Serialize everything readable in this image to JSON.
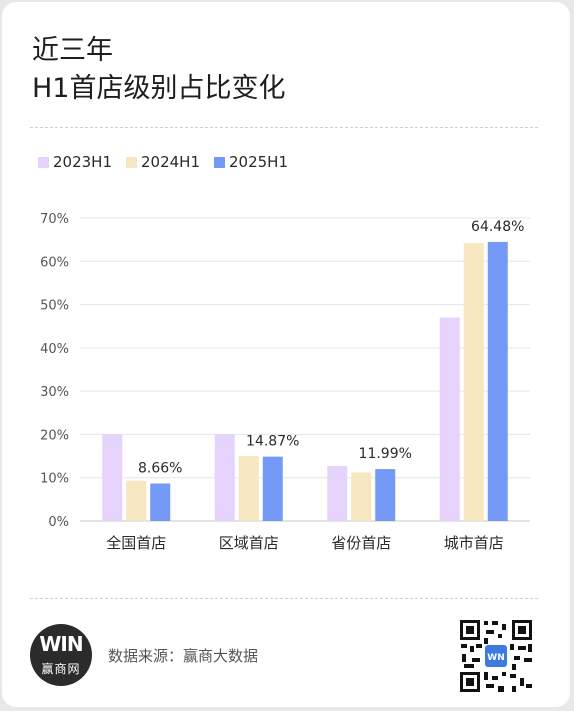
{
  "title_line1": "近三年",
  "title_line2": "H1首店级别占比变化",
  "source": "数据来源：赢商大数据",
  "logo": {
    "mark": "WIN",
    "text": "赢商网"
  },
  "colors": {
    "s2023": "#e6d3fb",
    "s2024": "#f7e7c0",
    "s2025": "#7599f7",
    "grid": "#e5e5e5",
    "axis": "#c8c8c8",
    "tick": "#555555"
  },
  "chart_data": {
    "type": "bar",
    "categories": [
      "全国首店",
      "区域首店",
      "省份首店",
      "城市首店"
    ],
    "series": [
      {
        "name": "2023H1",
        "values": [
          20,
          20,
          12.7,
          47
        ]
      },
      {
        "name": "2024H1",
        "values": [
          9.3,
          15,
          11.2,
          64.2
        ]
      },
      {
        "name": "2025H1",
        "values": [
          8.66,
          14.87,
          11.99,
          64.48
        ]
      }
    ],
    "data_labels": [
      "8.66%",
      "14.87%",
      "11.99%",
      "64.48%"
    ],
    "yticks": [
      "0%",
      "10%",
      "20%",
      "30%",
      "40%",
      "50%",
      "60%",
      "70%"
    ],
    "ylim": [
      0,
      70
    ],
    "legend_position": "top-left",
    "grid": true
  }
}
